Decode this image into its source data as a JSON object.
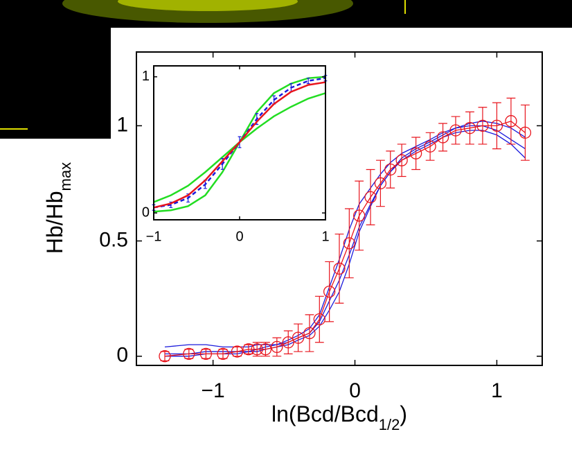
{
  "chart_data": [
    {
      "type": "line",
      "xlabel": [
        "ln(Bcd/Bcd",
        "1/2",
        ")"
      ],
      "ylabel": [
        "Hb/Hb",
        "max"
      ],
      "xlim": [
        -1.54,
        1.32
      ],
      "ylim": [
        -0.04,
        1.32
      ],
      "xticks": [
        {
          "value": -1,
          "label": "−1"
        },
        0,
        1
      ],
      "yticks": [
        0,
        0.5,
        1
      ],
      "x": [
        -1.34,
        -1.17,
        -1.05,
        -0.93,
        -0.83,
        -0.75,
        -0.69,
        -0.63,
        -0.55,
        -0.47,
        -0.4,
        -0.32,
        -0.25,
        -0.18,
        -0.11,
        -0.04,
        0.03,
        0.11,
        0.18,
        0.25,
        0.33,
        0.43,
        0.53,
        0.62,
        0.71,
        0.81,
        0.9,
        1.0,
        1.1,
        1.2
      ],
      "series": [
        {
          "color": "#1a1adc",
          "values": [
            0.04,
            0.05,
            0.05,
            0.04,
            0.04,
            0.04,
            0.05,
            0.05,
            0.05,
            0.07,
            0.09,
            0.12,
            0.18,
            0.3,
            0.42,
            0.55,
            0.66,
            0.73,
            0.79,
            0.84,
            0.88,
            0.91,
            0.94,
            0.97,
            0.99,
            1.0,
            1.0,
            0.98,
            0.94,
            0.9
          ]
        },
        {
          "color": "#1a1adc",
          "values": [
            0.01,
            0.01,
            0.02,
            0.02,
            0.02,
            0.02,
            0.03,
            0.04,
            0.05,
            0.06,
            0.08,
            0.1,
            0.15,
            0.24,
            0.33,
            0.44,
            0.56,
            0.66,
            0.74,
            0.8,
            0.85,
            0.89,
            0.92,
            0.95,
            0.97,
            0.98,
            0.98,
            0.96,
            0.92,
            0.86
          ]
        },
        {
          "color": "#1a1adc",
          "values": [
            0.0,
            0.0,
            0.01,
            0.01,
            0.01,
            0.02,
            0.02,
            0.03,
            0.04,
            0.05,
            0.07,
            0.09,
            0.13,
            0.2,
            0.28,
            0.4,
            0.54,
            0.65,
            0.74,
            0.8,
            0.86,
            0.9,
            0.93,
            0.96,
            0.99,
            1.01,
            1.02,
            1.01,
            0.99,
            0.95
          ]
        },
        {
          "color": "#e8141c",
          "marker": "o",
          "values": [
            0,
            0.01,
            0.01,
            0.01,
            0.02,
            0.03,
            0.03,
            0.03,
            0.04,
            0.06,
            0.08,
            0.1,
            0.16,
            0.28,
            0.38,
            0.49,
            0.61,
            0.69,
            0.75,
            0.81,
            0.85,
            0.88,
            0.91,
            0.95,
            0.98,
            0.99,
            1.0,
            1.0,
            1.02,
            0.97
          ],
          "errors": [
            0.02,
            0.02,
            0.02,
            0.02,
            0.02,
            0.02,
            0.03,
            0.03,
            0.04,
            0.05,
            0.06,
            0.08,
            0.1,
            0.13,
            0.15,
            0.15,
            0.15,
            0.12,
            0.1,
            0.08,
            0.07,
            0.07,
            0.06,
            0.06,
            0.06,
            0.07,
            0.08,
            0.1,
            0.1,
            0.12
          ]
        }
      ]
    },
    {
      "type": "line",
      "xlim": [
        -1,
        1
      ],
      "ylim": [
        -0.05,
        1.08
      ],
      "xticks": [
        {
          "value": -1,
          "label": "−1"
        },
        0,
        1
      ],
      "yticks": [
        0,
        1
      ],
      "x": [
        -1,
        -0.8,
        -0.6,
        -0.4,
        -0.2,
        0,
        0.2,
        0.4,
        0.6,
        0.8,
        1
      ],
      "series": [
        {
          "color": "#22dd22",
          "values": [
            0.08,
            0.13,
            0.2,
            0.3,
            0.41,
            0.52,
            0.62,
            0.71,
            0.78,
            0.84,
            0.88
          ]
        },
        {
          "color": "#22dd22",
          "values": [
            0.01,
            0.02,
            0.05,
            0.13,
            0.3,
            0.52,
            0.74,
            0.88,
            0.95,
            0.99,
            1.0
          ]
        },
        {
          "color": "#1a1adc",
          "dash": true,
          "values": [
            0.04,
            0.06,
            0.11,
            0.21,
            0.36,
            0.52,
            0.69,
            0.83,
            0.92,
            0.97,
            0.99
          ],
          "errors": [
            0.02,
            0.02,
            0.03,
            0.03,
            0.04,
            0.04,
            0.04,
            0.03,
            0.03,
            0.02,
            0.02
          ]
        },
        {
          "color": "#e8141c",
          "values": [
            0.04,
            0.07,
            0.13,
            0.24,
            0.38,
            0.52,
            0.67,
            0.8,
            0.89,
            0.94,
            0.96
          ]
        }
      ]
    }
  ]
}
